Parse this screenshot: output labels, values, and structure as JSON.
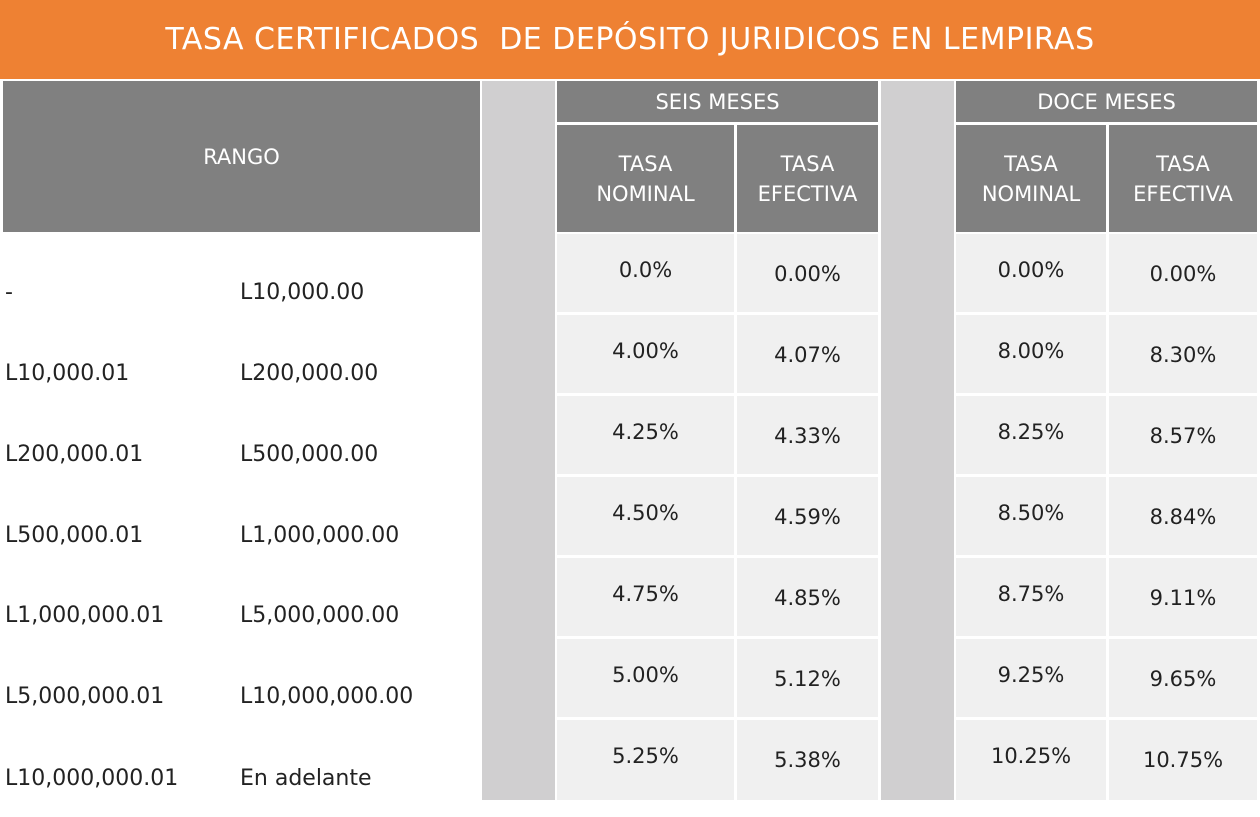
{
  "title": "TASA CERTIFICADOS  DE DEPÓSITO JURIDICOS EN LEMPIRAS",
  "headers": {
    "rango": "RANGO",
    "seis_meses": "SEIS MESES",
    "doce_meses": "DOCE MESES",
    "tasa_nominal": "TASA\nNOMINAL",
    "tasa_efectiva": "TASA\nEFECTIVA"
  },
  "rows": [
    {
      "from": "-",
      "to": "L10,000.00",
      "six_nominal": "0.0%",
      "six_efectiva": "0.00%",
      "twelve_nominal": "0.00%",
      "twelve_efectiva": "0.00%"
    },
    {
      "from": "L10,000.01",
      "to": "L200,000.00",
      "six_nominal": "4.00%",
      "six_efectiva": "4.07%",
      "twelve_nominal": "8.00%",
      "twelve_efectiva": "8.30%"
    },
    {
      "from": "L200,000.01",
      "to": "L500,000.00",
      "six_nominal": "4.25%",
      "six_efectiva": "4.33%",
      "twelve_nominal": "8.25%",
      "twelve_efectiva": "8.57%"
    },
    {
      "from": "L500,000.01",
      "to": "L1,000,000.00",
      "six_nominal": "4.50%",
      "six_efectiva": "4.59%",
      "twelve_nominal": "8.50%",
      "twelve_efectiva": "8.84%"
    },
    {
      "from": "L1,000,000.01",
      "to": "L5,000,000.00",
      "six_nominal": "4.75%",
      "six_efectiva": "4.85%",
      "twelve_nominal": "8.75%",
      "twelve_efectiva": "9.11%"
    },
    {
      "from": "L5,000,000.01",
      "to": "L10,000,000.00",
      "six_nominal": "5.00%",
      "six_efectiva": "5.12%",
      "twelve_nominal": "9.25%",
      "twelve_efectiva": "9.65%"
    },
    {
      "from": "L10,000,000.01",
      "to": "En adelante",
      "six_nominal": "5.25%",
      "six_efectiva": "5.38%",
      "twelve_nominal": "10.25%",
      "twelve_efectiva": "10.75%"
    }
  ]
}
